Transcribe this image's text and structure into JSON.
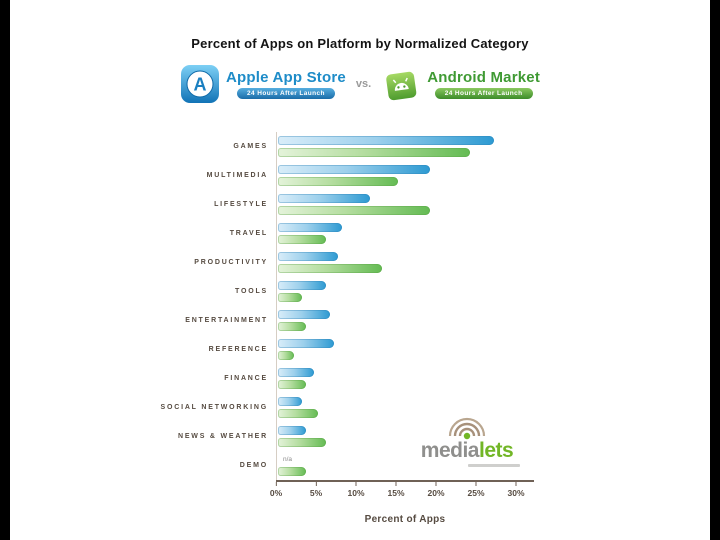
{
  "slide": {
    "title": "Percent of Apps on Platform by Normalized Category"
  },
  "header": {
    "apple": {
      "name": "Apple App Store",
      "banner": "24 Hours After Launch"
    },
    "vs": "vs.",
    "android": {
      "name": "Android Market",
      "banner": "24 Hours After Launch"
    }
  },
  "chart_data": {
    "type": "bar",
    "orientation": "horizontal",
    "title": "Percent of Apps on Platform by Normalized Category",
    "categories": [
      "GAMES",
      "MULTIMEDIA",
      "LIFESTYLE",
      "TRAVEL",
      "PRODUCTIVITY",
      "TOOLS",
      "ENTERTAINMENT",
      "REFERENCE",
      "FINANCE",
      "SOCIAL NETWORKING",
      "NEWS & WEATHER",
      "DEMO"
    ],
    "series": [
      {
        "name": "Apple App Store",
        "color": "#2d9ad2",
        "values": [
          27,
          19,
          11.5,
          8,
          7.5,
          6,
          6.5,
          7,
          4.5,
          3,
          3.5,
          0
        ]
      },
      {
        "name": "Android Market",
        "color": "#64bb53",
        "values": [
          24,
          15,
          19,
          6,
          13,
          3,
          3.5,
          2,
          3.5,
          5,
          6,
          3.5
        ]
      }
    ],
    "x_ticks": [
      "0%",
      "5%",
      "10%",
      "15%",
      "20%",
      "25%",
      "30%"
    ],
    "xlim": [
      0,
      32
    ],
    "xlabel": "Percent of Apps",
    "grid": false,
    "legend_position": "top-header",
    "annotations": [
      {
        "category": "DEMO",
        "series": "Apple App Store",
        "text": "n/a"
      }
    ]
  },
  "logo": {
    "brand_gray": "media",
    "brand_green": "lets"
  }
}
